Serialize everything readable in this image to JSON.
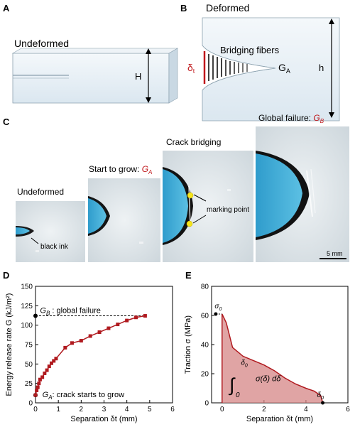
{
  "panels": {
    "a": "A",
    "b": "B",
    "c": "C",
    "d": "D",
    "e": "E"
  },
  "panel_a": {
    "title": "Undeformed",
    "height_label": "H"
  },
  "panel_b": {
    "title": "Deformed",
    "fibers_label": "Bridging fibers",
    "delta_label": "δ",
    "delta_sub": "t",
    "ga_label": "G",
    "ga_sub": "A",
    "height_label": "h"
  },
  "panel_c": {
    "photos": [
      {
        "title": "Undeformed",
        "title_suffix": "",
        "annotation": "black ink"
      },
      {
        "title": "Start to grow: ",
        "title_suffix": "G",
        "title_sub": "A"
      },
      {
        "title": "Crack bridging",
        "title_suffix": "",
        "annotation": "marking point"
      },
      {
        "title": "Global failure: ",
        "title_suffix": "G",
        "title_sub": "B",
        "scale": "5 mm"
      }
    ]
  },
  "colors": {
    "curve": "#b01a1f",
    "fill": "#d68686",
    "photo_bg": "#dfe7ec",
    "photo_blue": "#4fb3d8",
    "specimen": "#e6f0f7",
    "marker": "#f5e41c"
  },
  "chart_data": [
    {
      "type": "line",
      "xlabel": "Separation δt (mm)",
      "ylabel": "Energy release rate G (kJ/m²)",
      "xlim": [
        0,
        6
      ],
      "ylim": [
        0,
        150
      ],
      "xticks": [
        0,
        1,
        2,
        3,
        4,
        5,
        6
      ],
      "yticks": [
        0,
        25,
        50,
        75,
        100,
        125,
        150
      ],
      "series": [
        {
          "x": [
            0.0,
            0.05,
            0.1,
            0.15,
            0.2,
            0.3,
            0.4,
            0.5,
            0.6,
            0.7,
            0.8,
            0.9,
            1.3,
            1.6,
            2.0,
            2.4,
            2.8,
            3.2,
            3.6,
            4.0,
            4.4,
            4.8
          ],
          "y": [
            10,
            16,
            20,
            25,
            30,
            33,
            38,
            42,
            47,
            51,
            54,
            57,
            71,
            77,
            80,
            86,
            91,
            96,
            101,
            106,
            110,
            112
          ]
        }
      ],
      "annotations": {
        "gb_label": "G",
        "gb_sub": "B",
        "gb_text": ": global failure",
        "gb_value": 112,
        "ga_label": "G",
        "ga_sub": "A",
        "ga_text": ": crack starts to grow",
        "ga_value": 10
      }
    },
    {
      "type": "area",
      "xlabel": "Separation δt (mm)",
      "ylabel": "Traction σ (MPa)",
      "xlim": [
        -0.5,
        6
      ],
      "ylim": [
        0,
        80
      ],
      "xticks": [
        0,
        2,
        4,
        6
      ],
      "yticks": [
        0,
        20,
        40,
        60,
        80
      ],
      "series": [
        {
          "x": [
            0,
            0.2,
            0.5,
            1.0,
            1.5,
            2.0,
            2.5,
            3.0,
            3.5,
            4.0,
            4.4,
            4.7,
            4.8
          ],
          "y": [
            61,
            55,
            38,
            32,
            29,
            26,
            22,
            17,
            13,
            10,
            8,
            5,
            0
          ]
        }
      ],
      "annotations": {
        "sigma0_start": "σ",
        "sigma0_sub": "0",
        "sigma0_value": 61,
        "delta0_label": "δ",
        "delta0_sub": "0",
        "delta0_value": 4.8,
        "integral_text": "σ(δ) dδ",
        "integral_upper": "δ",
        "integral_upper_sub": "0",
        "integral_lower": "0"
      }
    }
  ]
}
